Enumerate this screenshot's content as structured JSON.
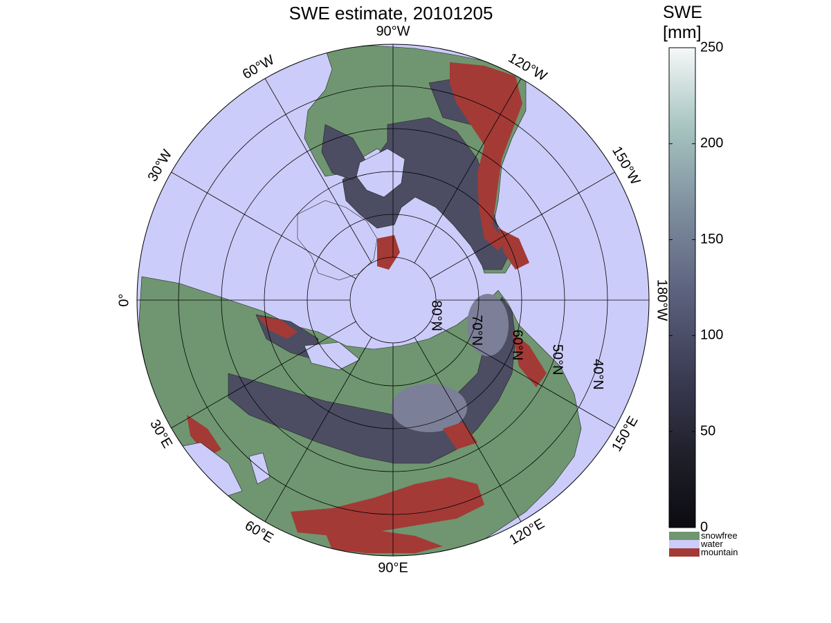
{
  "title": "SWE estimate, 20101205",
  "colorbar": {
    "title_line1": "SWE",
    "title_line2": "[mm]",
    "ticks": [
      0,
      50,
      100,
      150,
      200,
      250
    ],
    "range": [
      0,
      250
    ],
    "gradient_colors": [
      "#0b0b10",
      "#22222e",
      "#3e3f58",
      "#5e6480",
      "#7f8f9f",
      "#a6c4c0",
      "#f5f8f8"
    ],
    "categories": [
      {
        "label": "snowfree",
        "color": "#6f9670"
      },
      {
        "label": "water",
        "color": "#ccccfa"
      },
      {
        "label": "mountain",
        "color": "#a33a36"
      }
    ]
  },
  "map": {
    "projection": "north polar stereographic",
    "ocean_color": "#ccccfa",
    "land_snowfree_color": "#6f9670",
    "snow_color": "#4c4d63",
    "deep_snow_color": "#7c7f98",
    "mountain_color": "#a33a36",
    "longitude_labels": [
      {
        "text": "90°W",
        "deg": 90
      },
      {
        "text": "120°W",
        "deg": 120
      },
      {
        "text": "150°W",
        "deg": 150
      },
      {
        "text": "180°W",
        "deg": 180
      },
      {
        "text": "150°E",
        "deg": 210
      },
      {
        "text": "120°E",
        "deg": 240
      },
      {
        "text": "90°E",
        "deg": 270
      },
      {
        "text": "60°E",
        "deg": 300
      },
      {
        "text": "30°E",
        "deg": 330
      },
      {
        "text": "0°",
        "deg": 0
      },
      {
        "text": "30°W",
        "deg": 30
      },
      {
        "text": "60°W",
        "deg": 60
      }
    ],
    "latitude_labels": [
      "80°N",
      "70°N",
      "60°N",
      "50°N",
      "40°N"
    ]
  }
}
